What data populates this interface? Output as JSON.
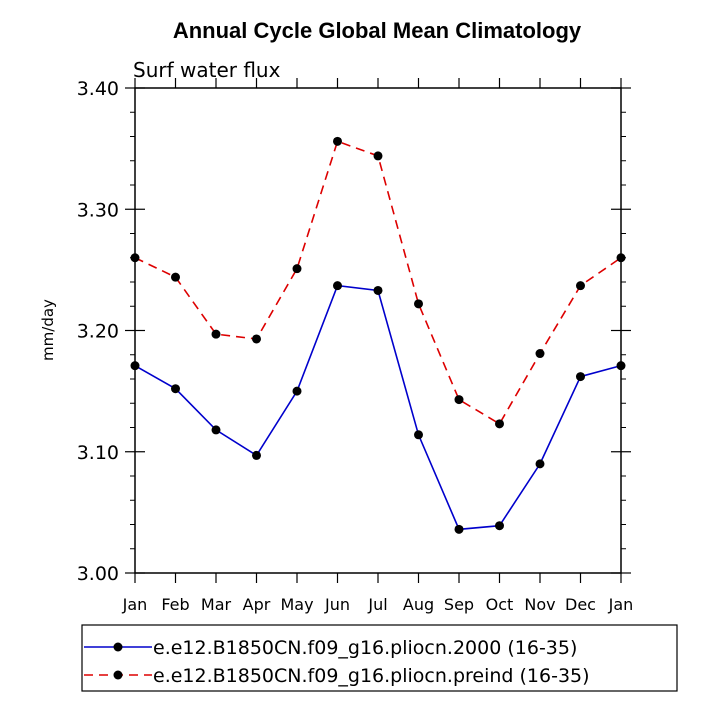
{
  "chart_data": {
    "type": "line",
    "title": "Annual Cycle Global Mean Climatology",
    "subtitle": "Surf water flux",
    "xlabel": "",
    "ylabel": "mm/day",
    "categories": [
      "Jan",
      "Feb",
      "Mar",
      "Apr",
      "May",
      "Jun",
      "Jul",
      "Aug",
      "Sep",
      "Oct",
      "Nov",
      "Dec",
      "Jan"
    ],
    "ylim": [
      3.0,
      3.4
    ],
    "yticks": [
      3.0,
      3.1,
      3.2,
      3.3,
      3.4
    ],
    "ytick_labels": [
      "3.00",
      "3.10",
      "3.20",
      "3.30",
      "3.40"
    ],
    "legend_position": "bottom",
    "series": [
      {
        "name": "e.e12.B1850CN.f09_g16.pliocn.2000 (16-35)",
        "color": "#0000cc",
        "dash": "solid",
        "values": [
          3.171,
          3.152,
          3.118,
          3.097,
          3.15,
          3.237,
          3.233,
          3.114,
          3.036,
          3.039,
          3.09,
          3.162,
          3.171
        ]
      },
      {
        "name": "e.e12.B1850CN.f09_g16.pliocn.preind (16-35)",
        "color": "#dd0000",
        "dash": "dashed",
        "values": [
          3.26,
          3.244,
          3.197,
          3.193,
          3.251,
          3.356,
          3.344,
          3.222,
          3.143,
          3.123,
          3.181,
          3.237,
          3.26
        ]
      }
    ]
  }
}
